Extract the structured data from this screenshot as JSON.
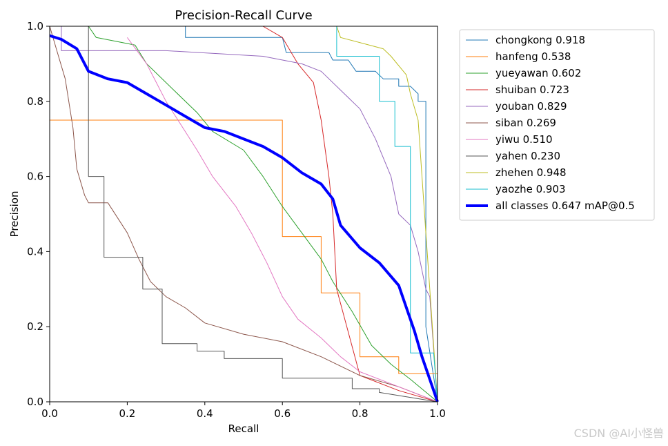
{
  "watermark": "CSDN @AI小怪兽",
  "chart_data": {
    "type": "line",
    "title": "Precision-Recall Curve",
    "xlabel": "Recall",
    "ylabel": "Precision",
    "xlim": [
      0,
      1
    ],
    "ylim": [
      0,
      1
    ],
    "xticks": [
      "0.0",
      "0.2",
      "0.4",
      "0.6",
      "0.8",
      "1.0"
    ],
    "yticks": [
      "0.0",
      "0.2",
      "0.4",
      "0.6",
      "0.8",
      "1.0"
    ],
    "legend_position": "outside-right",
    "series": [
      {
        "name": "chongkong",
        "label": "chongkong 0.918",
        "color": "#1f77b4",
        "width": 1,
        "x": [
          0,
          0.35,
          0.35,
          0.6,
          0.61,
          0.72,
          0.73,
          0.77,
          0.79,
          0.84,
          0.86,
          0.9,
          0.9,
          0.93,
          0.95,
          0.95,
          0.97,
          0.97,
          1.0
        ],
        "y": [
          1.0,
          1.0,
          0.97,
          0.97,
          0.93,
          0.93,
          0.91,
          0.91,
          0.88,
          0.88,
          0.86,
          0.86,
          0.84,
          0.84,
          0.82,
          0.8,
          0.8,
          0.2,
          0.0
        ]
      },
      {
        "name": "hanfeng",
        "label": "hanfeng 0.538",
        "color": "#ff7f0e",
        "width": 1,
        "x": [
          0,
          0.6,
          0.6,
          0.7,
          0.7,
          0.8,
          0.8,
          0.9,
          0.9,
          1.0,
          1.0
        ],
        "y": [
          0.75,
          0.75,
          0.44,
          0.44,
          0.29,
          0.29,
          0.12,
          0.12,
          0.075,
          0.075,
          0.0
        ]
      },
      {
        "name": "yueyawan",
        "label": "yueyawan 0.602",
        "color": "#2ca02c",
        "width": 1,
        "x": [
          0.1,
          0.12,
          0.22,
          0.25,
          0.32,
          0.38,
          0.42,
          0.5,
          0.55,
          0.6,
          0.65,
          0.7,
          0.73,
          0.78,
          0.83,
          0.88,
          0.93,
          1.0
        ],
        "y": [
          1.0,
          0.97,
          0.95,
          0.9,
          0.83,
          0.77,
          0.72,
          0.67,
          0.6,
          0.52,
          0.45,
          0.38,
          0.32,
          0.24,
          0.15,
          0.1,
          0.06,
          0.0
        ]
      },
      {
        "name": "shuiban",
        "label": "shuiban 0.723",
        "color": "#d62728",
        "width": 1,
        "x": [
          0.22,
          0.55,
          0.6,
          0.64,
          0.68,
          0.7,
          0.72,
          0.73,
          0.74,
          0.8,
          0.9,
          1.0
        ],
        "y": [
          1.0,
          1.0,
          0.97,
          0.9,
          0.85,
          0.75,
          0.6,
          0.5,
          0.3,
          0.07,
          0.03,
          0.0
        ]
      },
      {
        "name": "youban",
        "label": "youban 0.829",
        "color": "#9467bd",
        "width": 1,
        "x": [
          0.03,
          0.03,
          0.3,
          0.55,
          0.65,
          0.7,
          0.75,
          0.8,
          0.84,
          0.88,
          0.9,
          0.93,
          0.95,
          0.97,
          0.98,
          1.0
        ],
        "y": [
          1.0,
          0.935,
          0.935,
          0.92,
          0.9,
          0.88,
          0.83,
          0.78,
          0.7,
          0.6,
          0.5,
          0.47,
          0.4,
          0.3,
          0.28,
          0.0
        ]
      },
      {
        "name": "siban",
        "label": "siban 0.269",
        "color": "#8c564b",
        "width": 1,
        "x": [
          0,
          0.02,
          0.04,
          0.06,
          0.07,
          0.09,
          0.1,
          0.15,
          0.2,
          0.23,
          0.26,
          0.3,
          0.35,
          0.4,
          0.5,
          0.6,
          0.7,
          0.8,
          0.9,
          1.0
        ],
        "y": [
          1.0,
          0.93,
          0.86,
          0.73,
          0.62,
          0.55,
          0.53,
          0.53,
          0.45,
          0.38,
          0.32,
          0.28,
          0.25,
          0.21,
          0.18,
          0.16,
          0.12,
          0.07,
          0.04,
          0.0
        ]
      },
      {
        "name": "yiwu",
        "label": "yiwu 0.510",
        "color": "#e377c2",
        "width": 1,
        "x": [
          0.2,
          0.25,
          0.3,
          0.38,
          0.42,
          0.48,
          0.52,
          0.56,
          0.6,
          0.64,
          0.7,
          0.75,
          0.8,
          0.9,
          1.0
        ],
        "y": [
          0.97,
          0.9,
          0.8,
          0.67,
          0.6,
          0.52,
          0.45,
          0.37,
          0.28,
          0.22,
          0.17,
          0.12,
          0.08,
          0.04,
          0.0
        ]
      },
      {
        "name": "yahen",
        "label": "yahen 0.230",
        "color": "#555555",
        "width": 1,
        "x": [
          0.1,
          0.1,
          0.14,
          0.14,
          0.24,
          0.24,
          0.29,
          0.29,
          0.38,
          0.38,
          0.45,
          0.45,
          0.6,
          0.6,
          0.78,
          0.78,
          0.85,
          0.85,
          1.0
        ],
        "y": [
          1.0,
          0.6,
          0.6,
          0.385,
          0.385,
          0.3,
          0.3,
          0.155,
          0.155,
          0.135,
          0.135,
          0.115,
          0.115,
          0.063,
          0.063,
          0.035,
          0.035,
          0.025,
          0.0
        ]
      },
      {
        "name": "zhehen",
        "label": "zhehen 0.948",
        "color": "#bcbd22",
        "width": 1,
        "x": [
          0.74,
          0.75,
          0.86,
          0.88,
          0.92,
          0.93,
          0.95,
          0.97,
          0.98,
          1.0
        ],
        "y": [
          1.0,
          0.97,
          0.94,
          0.92,
          0.87,
          0.82,
          0.75,
          0.45,
          0.3,
          0.0
        ]
      },
      {
        "name": "yaozhe",
        "label": "yaozhe 0.903",
        "color": "#17becf",
        "width": 1,
        "x": [
          0.74,
          0.74,
          0.85,
          0.85,
          0.89,
          0.89,
          0.93,
          0.93,
          0.99,
          1.0
        ],
        "y": [
          1.0,
          0.92,
          0.92,
          0.8,
          0.8,
          0.68,
          0.68,
          0.13,
          0.13,
          0.0
        ]
      },
      {
        "name": "all classes",
        "label": "all classes 0.647 mAP@0.5",
        "color": "#0000ff",
        "width": 4,
        "x": [
          0,
          0.03,
          0.07,
          0.1,
          0.15,
          0.2,
          0.25,
          0.3,
          0.35,
          0.4,
          0.45,
          0.5,
          0.55,
          0.6,
          0.65,
          0.7,
          0.73,
          0.75,
          0.8,
          0.85,
          0.9,
          0.92,
          0.94,
          0.96,
          0.98,
          1.0
        ],
        "y": [
          0.975,
          0.965,
          0.94,
          0.88,
          0.86,
          0.85,
          0.82,
          0.79,
          0.76,
          0.73,
          0.72,
          0.7,
          0.68,
          0.65,
          0.61,
          0.58,
          0.54,
          0.47,
          0.41,
          0.37,
          0.31,
          0.25,
          0.19,
          0.12,
          0.06,
          0.0
        ]
      }
    ]
  }
}
